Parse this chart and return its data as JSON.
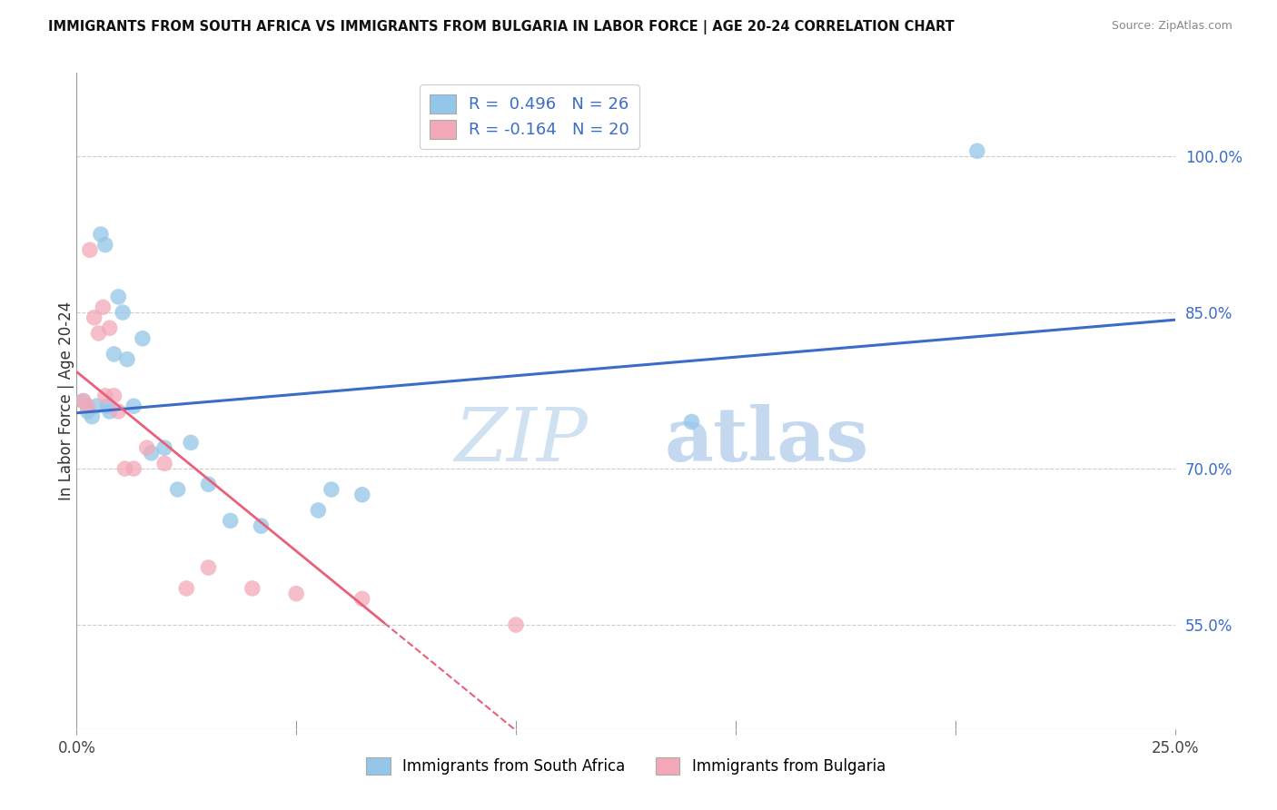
{
  "title": "IMMIGRANTS FROM SOUTH AFRICA VS IMMIGRANTS FROM BULGARIA IN LABOR FORCE | AGE 20-24 CORRELATION CHART",
  "source": "Source: ZipAtlas.com",
  "ylabel": "In Labor Force | Age 20-24",
  "yaxis_ticks": [
    55.0,
    70.0,
    85.0,
    100.0
  ],
  "yaxis_tick_labels": [
    "55.0%",
    "70.0%",
    "85.0%",
    "100.0%"
  ],
  "xlim": [
    0.0,
    25.0
  ],
  "ylim": [
    45.0,
    108.0
  ],
  "r_south_africa": 0.496,
  "n_south_africa": 26,
  "r_bulgaria": -0.164,
  "n_bulgaria": 20,
  "legend_label_sa": "Immigrants from South Africa",
  "legend_label_bg": "Immigrants from Bulgaria",
  "color_sa": "#93C6E8",
  "color_bg": "#F2A8B8",
  "color_sa_line": "#3B6CC8",
  "color_bg_line": "#E8607A",
  "south_africa_x": [
    0.15,
    0.25,
    0.35,
    0.45,
    0.55,
    0.65,
    0.7,
    0.75,
    0.85,
    0.95,
    1.05,
    1.15,
    1.3,
    1.5,
    1.7,
    2.0,
    2.3,
    2.6,
    3.0,
    3.5,
    4.2,
    5.5,
    5.8,
    6.5,
    14.0,
    20.5
  ],
  "south_africa_y": [
    76.5,
    75.5,
    75.0,
    76.0,
    92.5,
    91.5,
    76.0,
    75.5,
    81.0,
    86.5,
    85.0,
    80.5,
    76.0,
    82.5,
    71.5,
    72.0,
    68.0,
    72.5,
    68.5,
    65.0,
    64.5,
    66.0,
    68.0,
    67.5,
    74.5,
    100.5
  ],
  "bulgaria_x": [
    0.15,
    0.25,
    0.3,
    0.4,
    0.5,
    0.6,
    0.65,
    0.75,
    0.85,
    0.95,
    1.1,
    1.3,
    1.6,
    2.0,
    2.5,
    3.0,
    4.0,
    5.0,
    6.5,
    10.0
  ],
  "bulgaria_y": [
    76.5,
    76.0,
    91.0,
    84.5,
    83.0,
    85.5,
    77.0,
    83.5,
    77.0,
    75.5,
    70.0,
    70.0,
    72.0,
    70.5,
    58.5,
    60.5,
    58.5,
    58.0,
    57.5,
    55.0
  ],
  "watermark_zip": "ZIP",
  "watermark_atlas": "atlas",
  "background_color": "#FFFFFF",
  "grid_color": "#CCCCCC"
}
